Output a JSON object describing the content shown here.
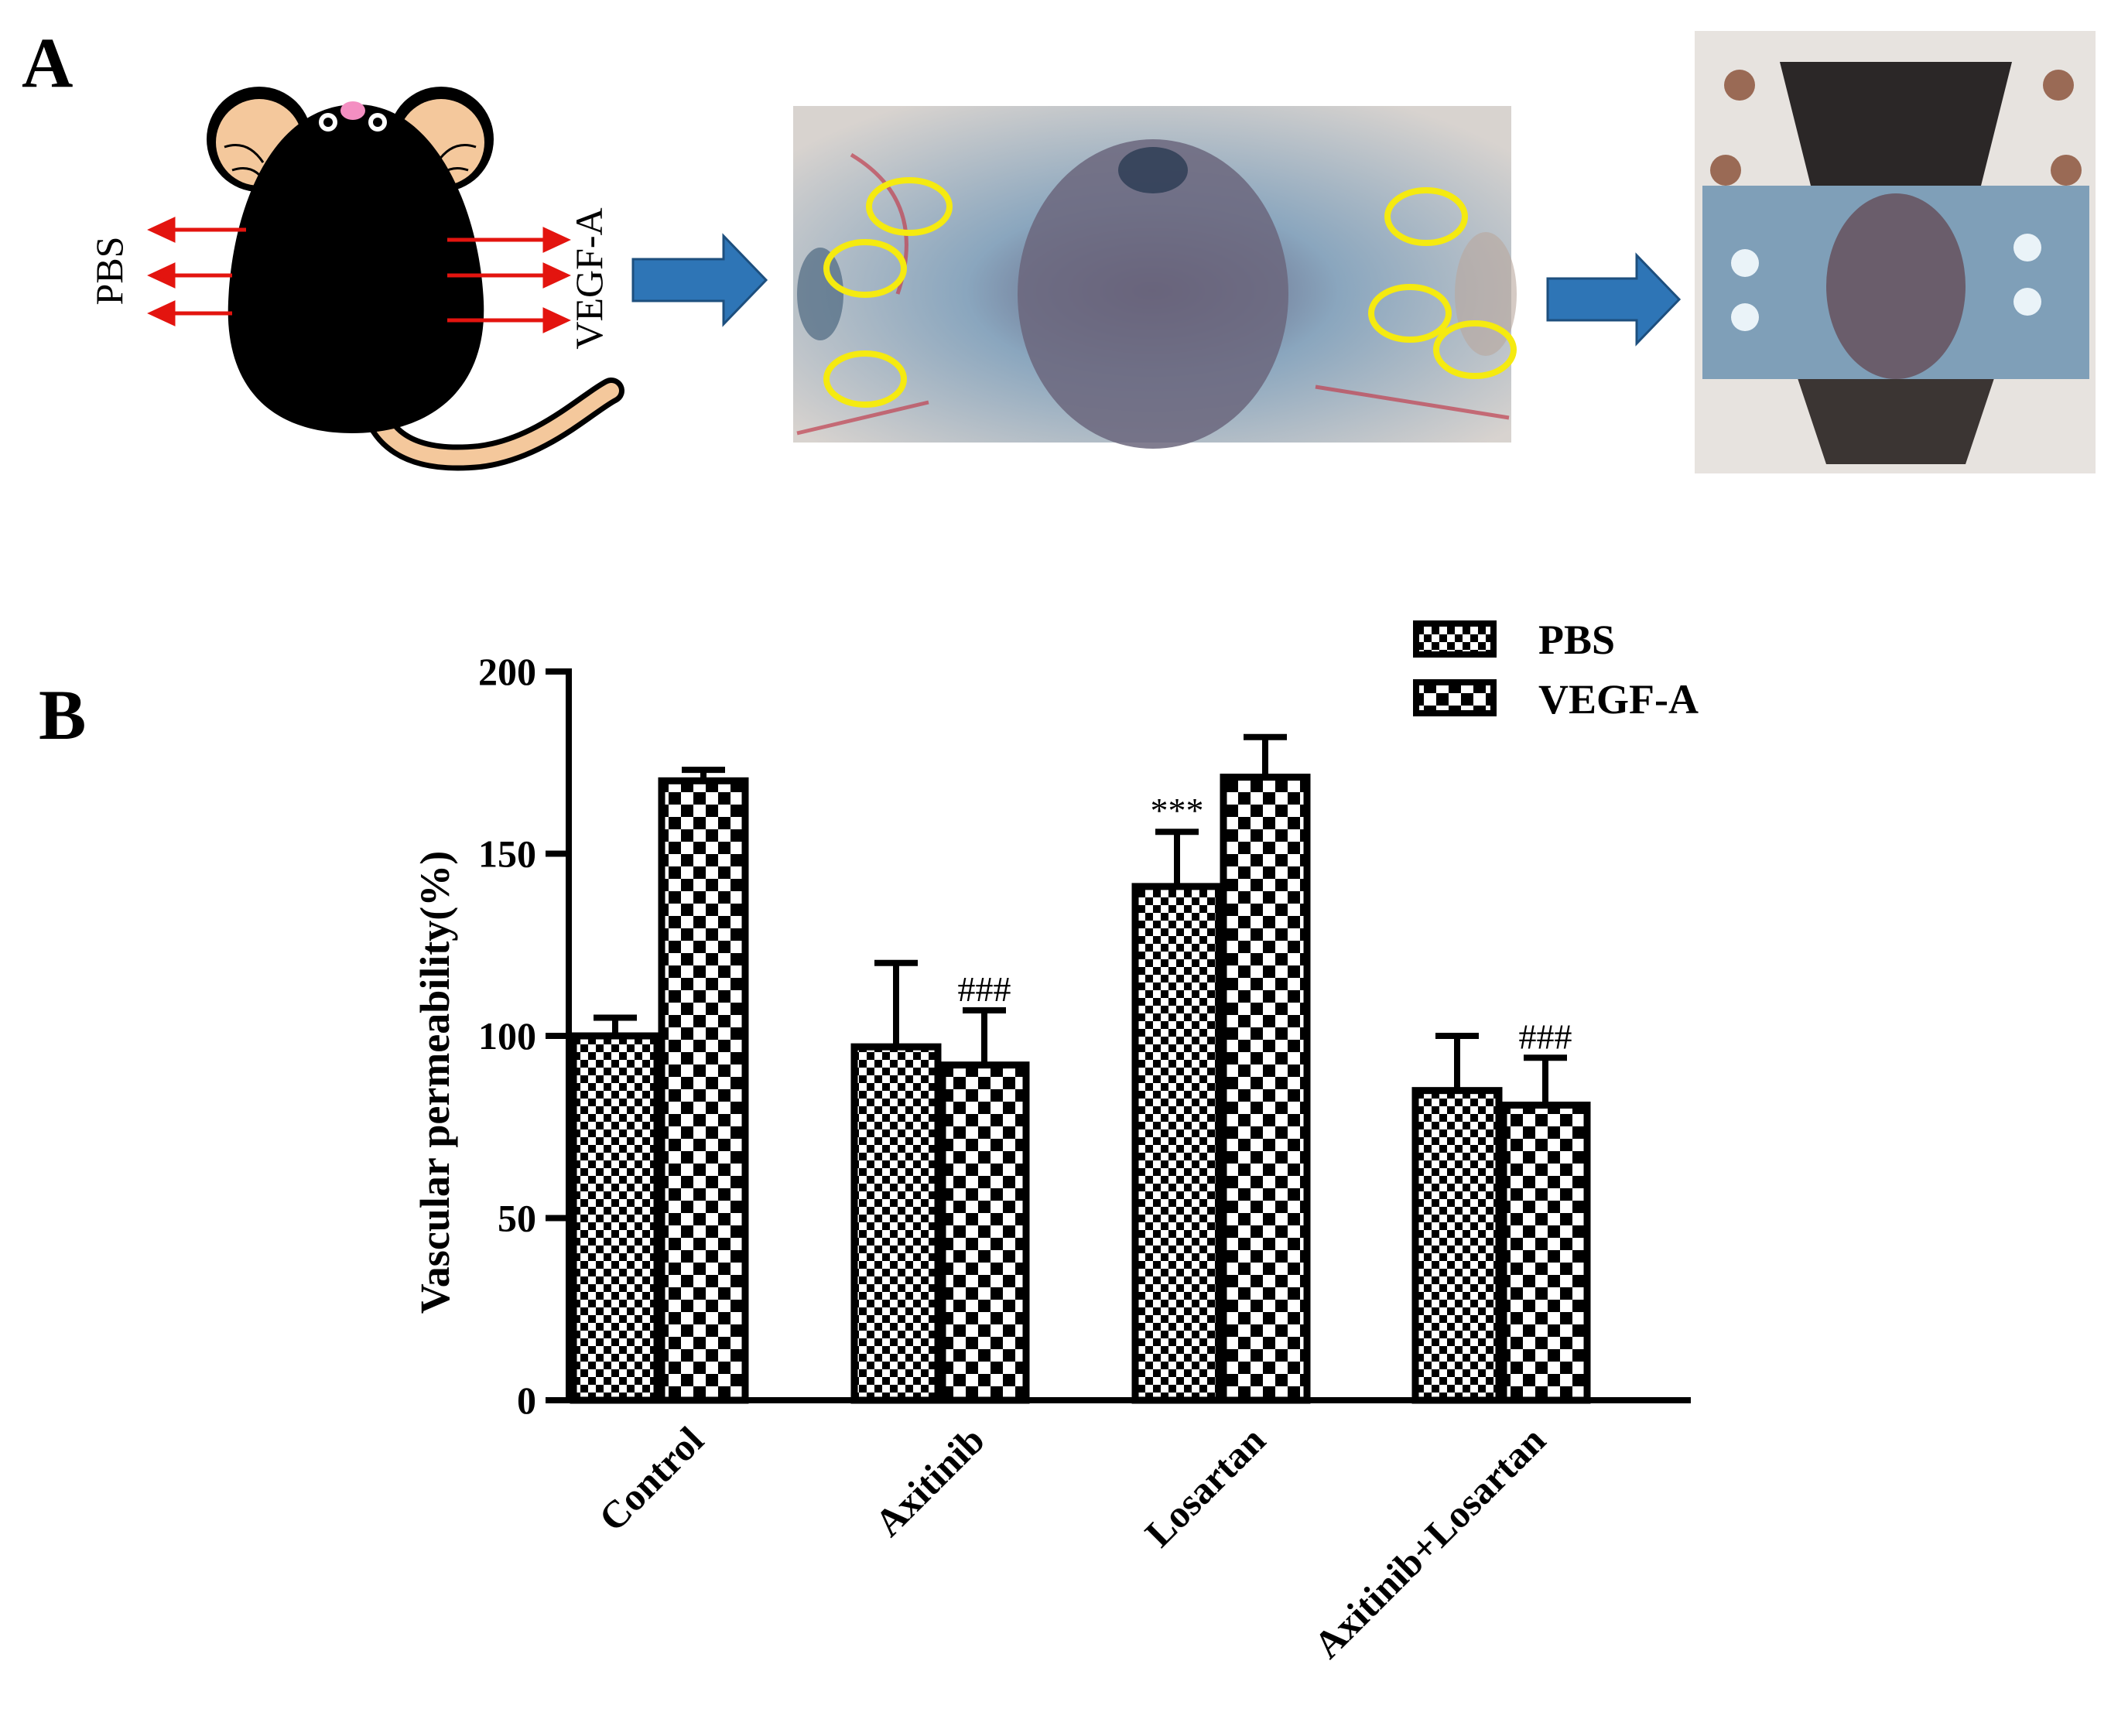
{
  "panel_a": {
    "label": "A",
    "left_label": "PBS",
    "right_label": "VEGF-A"
  },
  "panel_b": {
    "label": "B"
  },
  "colors": {
    "arrow_red": "#e3140f",
    "flow_arrow_blue": "#2e75b6",
    "circle_yellow": "#f5ea10",
    "mouse_ear": "#f4c89c",
    "mouse_body": "#000000",
    "tissue_blue": "#8fb0c8"
  },
  "chart_data": {
    "type": "bar",
    "categories": [
      "Control",
      "Axitinib",
      "Losartan",
      "Axitinib+Losartan"
    ],
    "series": [
      {
        "name": "PBS",
        "values": [
          100,
          97,
          141,
          85
        ],
        "errors": [
          5,
          23,
          15,
          15
        ],
        "pattern": "fine-checker"
      },
      {
        "name": "VEGF-A",
        "values": [
          170,
          92,
          171,
          81
        ],
        "errors": [
          3,
          15,
          11,
          13
        ],
        "pattern": "coarse-checker"
      }
    ],
    "ylabel": "Vascular permeability(%)",
    "xlabel": "",
    "ylim": [
      0,
      200
    ],
    "yticks": [
      0,
      50,
      100,
      150,
      200
    ],
    "annotations": [
      {
        "category": "Losartan",
        "series": "PBS",
        "text": "***"
      },
      {
        "category": "Axitinib",
        "series": "VEGF-A",
        "text": "###"
      },
      {
        "category": "Axitinib+Losartan",
        "series": "VEGF-A",
        "text": "###"
      }
    ],
    "legend_position": "top-right",
    "grid": false
  }
}
